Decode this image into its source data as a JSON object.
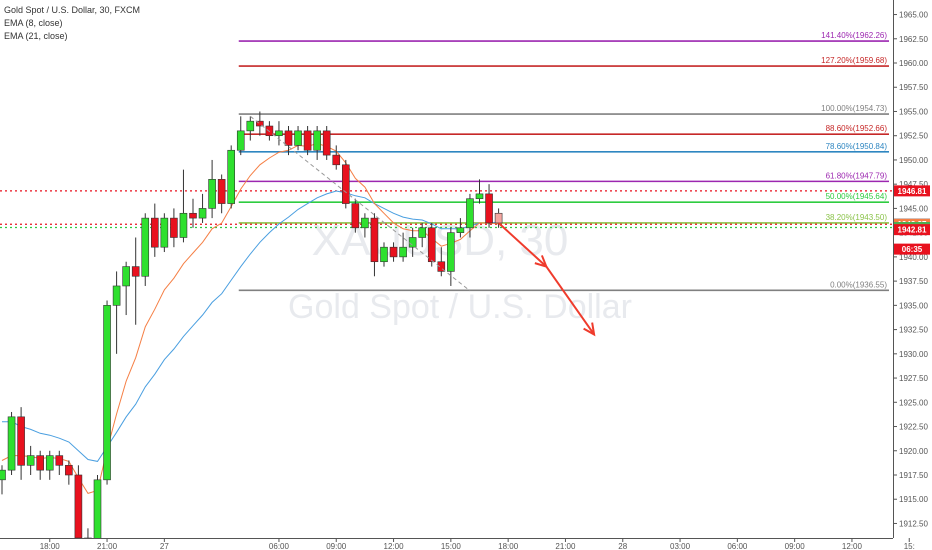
{
  "legend": {
    "title": "Gold Spot / U.S. Dollar, 30, FXCM",
    "ema8": "EMA (8, close)",
    "ema21": "EMA (21, close)"
  },
  "watermark": {
    "line1": "XAUUSD, 30",
    "line2": "Gold Spot / U.S. Dollar"
  },
  "colors": {
    "up": "#2ee02e",
    "down": "#e8111e",
    "wick": "#333333",
    "ema8": "#f57f45",
    "ema21": "#4a9fe0",
    "axis_bg": "#ffffff",
    "arrow": "#ef3b2c",
    "dashed": "#999999"
  },
  "chart_data": {
    "type": "candlestick",
    "ylim": [
      1911,
      1966.5
    ],
    "y_ticks": [
      "1965.00",
      "1962.50",
      "1960.00",
      "1957.50",
      "1955.00",
      "1952.50",
      "1950.00",
      "1947.50",
      "1945.00",
      "1942.50",
      "1940.00",
      "1937.50",
      "1935.00",
      "1932.50",
      "1930.00",
      "1927.50",
      "1925.00",
      "1922.50",
      "1920.00",
      "1917.50",
      "1915.00",
      "1912.50"
    ],
    "x_ticks": [
      {
        "label": "18:00",
        "i": 5
      },
      {
        "label": "21:00",
        "i": 11
      },
      {
        "label": "27",
        "i": 17
      },
      {
        "label": "06:00",
        "i": 29
      },
      {
        "label": "09:00",
        "i": 35
      },
      {
        "label": "12:00",
        "i": 41
      },
      {
        "label": "15:00",
        "i": 47
      },
      {
        "label": "18:00",
        "i": 53
      },
      {
        "label": "21:00",
        "i": 59
      },
      {
        "label": "28",
        "i": 65
      },
      {
        "label": "03:00",
        "i": 71
      },
      {
        "label": "06:00",
        "i": 77
      },
      {
        "label": "09:00",
        "i": 83
      },
      {
        "label": "12:00",
        "i": 89
      },
      {
        "label": "15:",
        "i": 95
      }
    ],
    "candles": [
      {
        "o": 1917.0,
        "h": 1918.5,
        "l": 1915.5,
        "c": 1918.0
      },
      {
        "o": 1918.0,
        "h": 1924.0,
        "l": 1917.5,
        "c": 1923.5
      },
      {
        "o": 1923.5,
        "h": 1924.5,
        "l": 1917.0,
        "c": 1918.5
      },
      {
        "o": 1918.5,
        "h": 1920.5,
        "l": 1917.5,
        "c": 1919.5
      },
      {
        "o": 1919.5,
        "h": 1920.0,
        "l": 1917.0,
        "c": 1918.0
      },
      {
        "o": 1918.0,
        "h": 1920.0,
        "l": 1917.0,
        "c": 1919.5
      },
      {
        "o": 1919.5,
        "h": 1920.0,
        "l": 1917.5,
        "c": 1918.5
      },
      {
        "o": 1918.5,
        "h": 1919.0,
        "l": 1916.5,
        "c": 1917.5
      },
      {
        "o": 1917.5,
        "h": 1918.5,
        "l": 1910.0,
        "c": 1911.0
      },
      {
        "o": 1911.0,
        "h": 1912.0,
        "l": 1909.0,
        "c": 1910.0
      },
      {
        "o": 1910.0,
        "h": 1917.5,
        "l": 1909.5,
        "c": 1917.0
      },
      {
        "o": 1917.0,
        "h": 1935.5,
        "l": 1916.5,
        "c": 1935.0
      },
      {
        "o": 1935.0,
        "h": 1938.5,
        "l": 1930.0,
        "c": 1937.0
      },
      {
        "o": 1937.0,
        "h": 1939.5,
        "l": 1934.0,
        "c": 1939.0
      },
      {
        "o": 1939.0,
        "h": 1942.0,
        "l": 1933.0,
        "c": 1938.0
      },
      {
        "o": 1938.0,
        "h": 1944.5,
        "l": 1937.0,
        "c": 1944.0
      },
      {
        "o": 1944.0,
        "h": 1945.5,
        "l": 1940.0,
        "c": 1941.0
      },
      {
        "o": 1941.0,
        "h": 1944.5,
        "l": 1940.5,
        "c": 1944.0
      },
      {
        "o": 1944.0,
        "h": 1945.0,
        "l": 1941.0,
        "c": 1942.0
      },
      {
        "o": 1942.0,
        "h": 1949.0,
        "l": 1941.5,
        "c": 1944.5
      },
      {
        "o": 1944.5,
        "h": 1946.0,
        "l": 1943.0,
        "c": 1944.0
      },
      {
        "o": 1944.0,
        "h": 1946.5,
        "l": 1943.5,
        "c": 1945.0
      },
      {
        "o": 1945.0,
        "h": 1950.0,
        "l": 1944.0,
        "c": 1948.0
      },
      {
        "o": 1948.0,
        "h": 1948.5,
        "l": 1944.5,
        "c": 1945.5
      },
      {
        "o": 1945.5,
        "h": 1951.5,
        "l": 1945.0,
        "c": 1951.0
      },
      {
        "o": 1951.0,
        "h": 1954.5,
        "l": 1950.5,
        "c": 1953.0
      },
      {
        "o": 1953.0,
        "h": 1954.5,
        "l": 1952.0,
        "c": 1954.0
      },
      {
        "o": 1954.0,
        "h": 1955.0,
        "l": 1952.5,
        "c": 1953.5
      },
      {
        "o": 1953.5,
        "h": 1954.0,
        "l": 1952.0,
        "c": 1952.5
      },
      {
        "o": 1952.5,
        "h": 1954.0,
        "l": 1951.5,
        "c": 1953.0
      },
      {
        "o": 1953.0,
        "h": 1953.5,
        "l": 1950.5,
        "c": 1951.5
      },
      {
        "o": 1951.5,
        "h": 1953.5,
        "l": 1951.0,
        "c": 1953.0
      },
      {
        "o": 1953.0,
        "h": 1953.5,
        "l": 1950.5,
        "c": 1951.0
      },
      {
        "o": 1951.0,
        "h": 1953.5,
        "l": 1950.0,
        "c": 1953.0
      },
      {
        "o": 1953.0,
        "h": 1953.5,
        "l": 1950.0,
        "c": 1950.5
      },
      {
        "o": 1950.5,
        "h": 1951.5,
        "l": 1949.0,
        "c": 1949.5
      },
      {
        "o": 1949.5,
        "h": 1950.0,
        "l": 1945.0,
        "c": 1945.5
      },
      {
        "o": 1945.5,
        "h": 1946.0,
        "l": 1942.5,
        "c": 1943.0
      },
      {
        "o": 1943.0,
        "h": 1944.5,
        "l": 1942.0,
        "c": 1944.0
      },
      {
        "o": 1944.0,
        "h": 1944.5,
        "l": 1938.0,
        "c": 1939.5
      },
      {
        "o": 1939.5,
        "h": 1941.5,
        "l": 1939.0,
        "c": 1941.0
      },
      {
        "o": 1941.0,
        "h": 1941.5,
        "l": 1939.5,
        "c": 1940.0
      },
      {
        "o": 1940.0,
        "h": 1942.5,
        "l": 1939.5,
        "c": 1941.0
      },
      {
        "o": 1941.0,
        "h": 1943.0,
        "l": 1940.0,
        "c": 1942.0
      },
      {
        "o": 1942.0,
        "h": 1943.5,
        "l": 1941.0,
        "c": 1943.0
      },
      {
        "o": 1943.0,
        "h": 1943.5,
        "l": 1939.0,
        "c": 1939.5
      },
      {
        "o": 1939.5,
        "h": 1941.0,
        "l": 1938.0,
        "c": 1938.5
      },
      {
        "o": 1938.5,
        "h": 1943.0,
        "l": 1937.0,
        "c": 1942.5
      },
      {
        "o": 1942.5,
        "h": 1944.0,
        "l": 1942.0,
        "c": 1943.0
      },
      {
        "o": 1943.0,
        "h": 1946.5,
        "l": 1942.0,
        "c": 1946.0
      },
      {
        "o": 1946.0,
        "h": 1948.0,
        "l": 1945.5,
        "c": 1946.5
      },
      {
        "o": 1946.5,
        "h": 1947.5,
        "l": 1943.0,
        "c": 1943.5
      },
      {
        "o": 1943.5,
        "h": 1945.0,
        "l": 1943.0,
        "c": 1944.5,
        "pending": true
      }
    ],
    "ema8": [
      1919.0,
      1919.5,
      1919.5,
      1919.4,
      1919.2,
      1919.3,
      1919.2,
      1918.9,
      1917.2,
      1915.6,
      1915.9,
      1920.1,
      1923.8,
      1927.2,
      1929.6,
      1932.8,
      1934.6,
      1936.6,
      1937.8,
      1939.3,
      1940.4,
      1941.5,
      1942.9,
      1943.5,
      1945.2,
      1947.0,
      1948.4,
      1949.5,
      1950.2,
      1950.8,
      1951.0,
      1951.5,
      1951.4,
      1951.7,
      1951.4,
      1950.9,
      1949.7,
      1948.1,
      1947.2,
      1945.5,
      1944.5,
      1943.5,
      1942.9,
      1942.7,
      1942.7,
      1941.9,
      1941.1,
      1941.4,
      1941.8,
      1942.7,
      1943.5,
      1943.5,
      1943.4
    ],
    "ema21": [
      1923.0,
      1923.0,
      1922.5,
      1922.2,
      1921.8,
      1921.6,
      1921.3,
      1920.9,
      1920.0,
      1919.1,
      1918.9,
      1920.4,
      1921.9,
      1923.5,
      1924.8,
      1926.6,
      1927.9,
      1929.4,
      1930.5,
      1931.8,
      1932.9,
      1934.0,
      1935.3,
      1936.2,
      1937.6,
      1939.0,
      1940.3,
      1941.5,
      1942.5,
      1943.4,
      1944.1,
      1944.9,
      1945.5,
      1946.1,
      1946.5,
      1946.8,
      1946.6,
      1946.3,
      1946.1,
      1945.5,
      1945.0,
      1944.5,
      1944.1,
      1943.9,
      1943.8,
      1943.4,
      1942.9,
      1942.9,
      1942.9,
      1943.2,
      1943.5,
      1943.5,
      1943.6
    ],
    "fib_levels": [
      {
        "label": "141.40%(1962.26)",
        "price": 1962.26,
        "color": "#9c27b0",
        "start": 25
      },
      {
        "label": "127.20%(1959.68)",
        "price": 1959.68,
        "color": "#c62828",
        "start": 25
      },
      {
        "label": "100.00%(1954.73)",
        "price": 1954.73,
        "color": "#808080",
        "start": 25
      },
      {
        "label": "88.60%(1952.66)",
        "price": 1952.66,
        "color": "#c62828",
        "start": 25
      },
      {
        "label": "78.60%(1950.84)",
        "price": 1950.84,
        "color": "#2e86c1",
        "start": 25
      },
      {
        "label": "61.80%(1947.79)",
        "price": 1947.79,
        "color": "#9c27b0",
        "start": 25
      },
      {
        "label": "50.00%(1945.64)",
        "price": 1945.64,
        "color": "#2ecc40",
        "start": 25
      },
      {
        "label": "38.20%(1943.50)",
        "price": 1943.5,
        "color": "#8bc34a",
        "start": 25
      },
      {
        "label": "0.00%(1936.55)",
        "price": 1936.55,
        "color": "#808080",
        "start": 25
      }
    ],
    "dotted_lines": [
      {
        "price": 1946.81,
        "color": "#e8111e"
      },
      {
        "price": 1943.37,
        "color": "#e8111e"
      },
      {
        "price": 1943.03,
        "color": "#2ecc40"
      }
    ],
    "price_badges": [
      {
        "text": "1946.81",
        "price": 1946.81,
        "bg": "#e8111e"
      },
      {
        "text": "1943.39",
        "price": 1943.39,
        "bg": "#2e86c1"
      },
      {
        "text": "1943.37",
        "price": 1943.37,
        "bg": "#f57f45"
      },
      {
        "text": "1943.03",
        "price": 1943.03,
        "bg": "#4caf50"
      },
      {
        "text": "1942.81",
        "price": 1942.81,
        "bg": "#e8111e"
      },
      {
        "text": "06:35",
        "price": 1940.8,
        "bg": "#e8111e"
      }
    ],
    "projection": [
      {
        "i": 52,
        "p": 1943.5
      },
      {
        "i": 57,
        "p": 1939.0
      },
      {
        "i": 62,
        "p": 1932.0
      }
    ],
    "trend_dash": [
      {
        "i": 26,
        "p": 1954.5
      },
      {
        "i": 49,
        "p": 1936.5
      }
    ]
  }
}
